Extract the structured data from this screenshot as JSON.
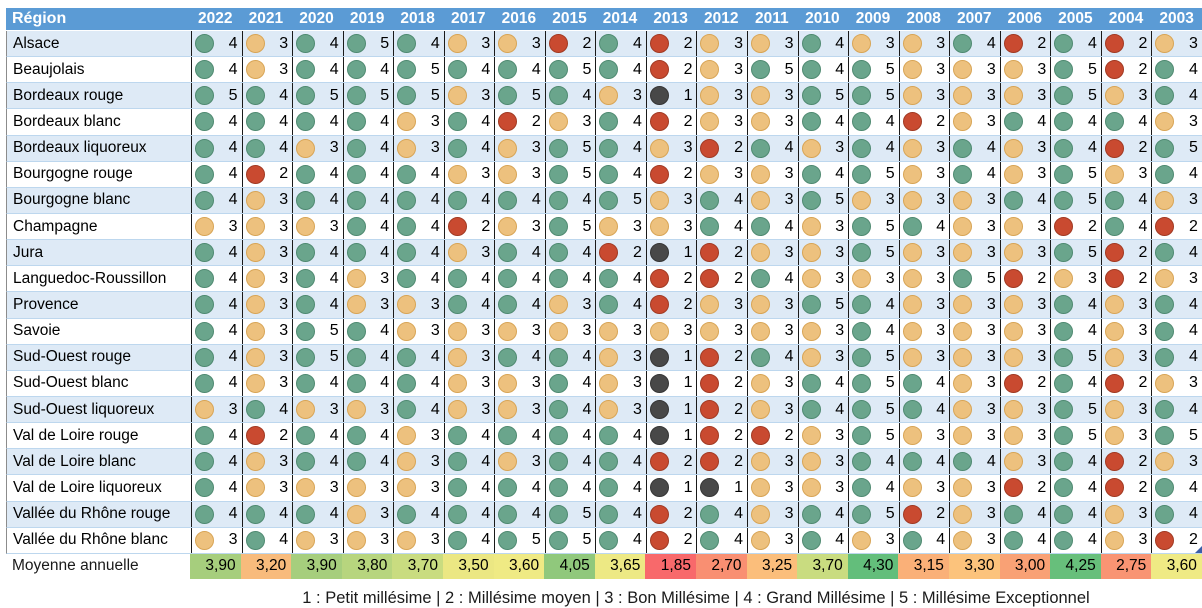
{
  "table": {
    "region_header": "Région",
    "average_row": {
      "label": "Moyenne annuelle",
      "values": [
        "3,90",
        "3,20",
        "3,90",
        "3,80",
        "3,70",
        "3,50",
        "3,60",
        "4,05",
        "3,65",
        "1,85",
        "2,70",
        "3,25",
        "3,70",
        "4,30",
        "3,15",
        "3,30",
        "3,00",
        "4,25",
        "2,75",
        "3,60"
      ],
      "colors": [
        "#A6CE7D",
        "#F8BB7C",
        "#A6CE7D",
        "#B7D57E",
        "#C9DC80",
        "#EBE783",
        "#EFEA84",
        "#90C87C",
        "#EDE984",
        "#F8696B",
        "#F98F72",
        "#FBBE7B",
        "#C9DC80",
        "#63BE7B",
        "#FAB078",
        "#FCC37C",
        "#F9A175",
        "#67BF7B",
        "#F99473",
        "#EFEA84"
      ]
    }
  },
  "legend": {
    "text": "1 : Petit millésime | 2 : Millésime moyen | 3 : Bon Millésime | 4 : Grand Millésime | 5 : Millésime Exceptionnel"
  },
  "rating_styles": {
    "1": {
      "fill": "#484848",
      "stroke": "#353535"
    },
    "2": {
      "fill": "#C94A30",
      "stroke": "#A13A23"
    },
    "3": {
      "fill": "#EDC17E",
      "stroke": "#D8A556"
    },
    "4": {
      "fill": "#6AA58C",
      "stroke": "#4F8A71"
    },
    "5": {
      "fill": "#6AA58C",
      "stroke": "#4F8A71"
    }
  },
  "theme": {
    "header_bg": "#5B9BD5",
    "header_text": "#FFFFFF",
    "alt_row_bg": "#DEEAF6",
    "row_bg": "#FFFFFF",
    "v_grid": "#1A1A1A",
    "h_grid": "#BDD7EE",
    "comment_marker": "#3B5EA8"
  },
  "chart_data": {
    "type": "heatmap",
    "title": "Notes des millésimes par région viticole",
    "columns": [
      "2022",
      "2021",
      "2020",
      "2019",
      "2018",
      "2017",
      "2016",
      "2015",
      "2014",
      "2013",
      "2012",
      "2011",
      "2010",
      "2009",
      "2008",
      "2007",
      "2006",
      "2005",
      "2004",
      "2003"
    ],
    "rows": [
      "Alsace",
      "Beaujolais",
      "Bordeaux rouge",
      "Bordeaux blanc",
      "Bordeaux liquoreux",
      "Bourgogne rouge",
      "Bourgogne blanc",
      "Champagne",
      "Jura",
      "Languedoc-Roussillon",
      "Provence",
      "Savoie",
      "Sud-Ouest rouge",
      "Sud-Ouest blanc",
      "Sud-Ouest liquoreux",
      "Val de Loire rouge",
      "Val de Loire blanc",
      "Val de Loire liquoreux",
      "Vallée du Rhône rouge",
      "Vallée du Rhône blanc"
    ],
    "values": [
      [
        4,
        3,
        4,
        5,
        4,
        3,
        3,
        2,
        4,
        2,
        3,
        3,
        4,
        3,
        3,
        4,
        2,
        4,
        2,
        3
      ],
      [
        4,
        3,
        4,
        4,
        5,
        4,
        4,
        5,
        4,
        2,
        3,
        5,
        4,
        5,
        3,
        3,
        3,
        5,
        2,
        4
      ],
      [
        5,
        4,
        5,
        5,
        5,
        3,
        5,
        4,
        3,
        1,
        3,
        3,
        5,
        5,
        3,
        3,
        3,
        5,
        3,
        4
      ],
      [
        4,
        4,
        4,
        4,
        3,
        4,
        2,
        3,
        4,
        2,
        3,
        3,
        4,
        4,
        2,
        3,
        4,
        4,
        4,
        3
      ],
      [
        4,
        4,
        3,
        4,
        3,
        4,
        3,
        5,
        4,
        3,
        2,
        4,
        3,
        4,
        3,
        4,
        3,
        4,
        2,
        5
      ],
      [
        4,
        2,
        4,
        4,
        4,
        3,
        3,
        5,
        4,
        2,
        3,
        3,
        4,
        5,
        3,
        4,
        3,
        5,
        3,
        4
      ],
      [
        4,
        3,
        4,
        4,
        4,
        4,
        4,
        4,
        5,
        3,
        4,
        3,
        5,
        3,
        3,
        3,
        4,
        5,
        4,
        3
      ],
      [
        3,
        3,
        3,
        4,
        4,
        2,
        3,
        5,
        3,
        3,
        4,
        4,
        3,
        5,
        4,
        3,
        3,
        2,
        4,
        2
      ],
      [
        4,
        3,
        4,
        4,
        4,
        3,
        4,
        4,
        2,
        1,
        2,
        3,
        3,
        5,
        3,
        3,
        3,
        5,
        2,
        4
      ],
      [
        4,
        3,
        4,
        3,
        4,
        4,
        4,
        4,
        4,
        2,
        2,
        4,
        3,
        3,
        3,
        5,
        2,
        3,
        2,
        3
      ],
      [
        4,
        3,
        4,
        3,
        3,
        4,
        4,
        3,
        4,
        2,
        3,
        3,
        5,
        4,
        3,
        3,
        3,
        4,
        3,
        4
      ],
      [
        4,
        3,
        5,
        4,
        3,
        3,
        3,
        3,
        3,
        3,
        3,
        3,
        3,
        4,
        3,
        3,
        3,
        4,
        3,
        4
      ],
      [
        4,
        3,
        5,
        4,
        4,
        3,
        4,
        4,
        3,
        1,
        2,
        4,
        3,
        5,
        3,
        3,
        3,
        5,
        3,
        4
      ],
      [
        4,
        3,
        4,
        4,
        4,
        3,
        3,
        4,
        3,
        1,
        2,
        3,
        4,
        5,
        4,
        3,
        2,
        4,
        2,
        3
      ],
      [
        3,
        4,
        3,
        3,
        4,
        3,
        3,
        4,
        3,
        1,
        2,
        3,
        4,
        5,
        4,
        3,
        3,
        5,
        3,
        4
      ],
      [
        4,
        2,
        4,
        4,
        3,
        4,
        4,
        4,
        4,
        1,
        2,
        2,
        3,
        5,
        3,
        3,
        3,
        5,
        3,
        5
      ],
      [
        4,
        3,
        4,
        4,
        3,
        4,
        3,
        4,
        4,
        2,
        2,
        3,
        3,
        4,
        4,
        4,
        3,
        4,
        2,
        3
      ],
      [
        4,
        3,
        3,
        3,
        3,
        4,
        4,
        4,
        4,
        1,
        1,
        3,
        3,
        4,
        3,
        3,
        2,
        4,
        2,
        4
      ],
      [
        4,
        4,
        4,
        3,
        4,
        4,
        4,
        5,
        4,
        2,
        4,
        3,
        4,
        5,
        2,
        3,
        4,
        4,
        3,
        4
      ],
      [
        3,
        4,
        3,
        3,
        3,
        4,
        5,
        5,
        4,
        2,
        4,
        3,
        4,
        3,
        4,
        3,
        4,
        4,
        3,
        2
      ]
    ],
    "column_averages": [
      3.9,
      3.2,
      3.9,
      3.8,
      3.7,
      3.5,
      3.6,
      4.05,
      3.65,
      1.85,
      2.7,
      3.25,
      3.7,
      4.3,
      3.15,
      3.3,
      3.0,
      4.25,
      2.75,
      3.6
    ],
    "rating_scale": {
      "1": "Petit millésime",
      "2": "Millésime moyen",
      "3": "Bon Millésime",
      "4": "Grand Millésime",
      "5": "Millésime Exceptionnel"
    },
    "legend_position": "bottom"
  }
}
